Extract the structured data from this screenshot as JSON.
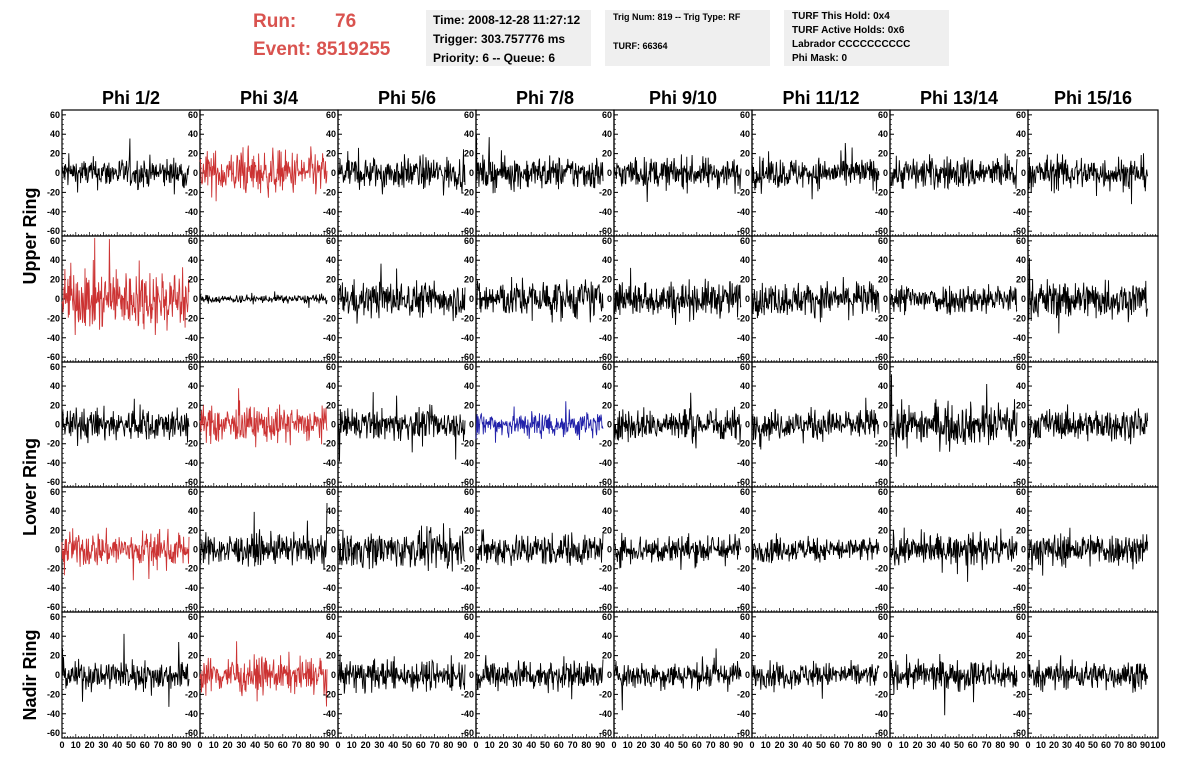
{
  "header": {
    "run_label": "Run:",
    "run_value": "76",
    "event_label": "Event:",
    "event_value": "8519255",
    "time": "Time: 2008-12-28 11:27:12",
    "trigger": "Trigger: 303.757776 ms",
    "priority": "Priority: 6 -- Queue: 6",
    "trig_num": "Trig Num: 819 -- Trig Type: RF",
    "turf": "TURF: 66364",
    "turf_hold": "TURF This Hold: 0x4",
    "turf_active": "TURF Active Holds: 0x6",
    "labrador": "Labrador CCCCCCCCCC",
    "phi_mask": "Phi Mask: 0"
  },
  "colors": {
    "normal": "#000000",
    "red": "#cc3333",
    "blue": "#2222aa",
    "run_text": "#d9534f",
    "info_bg": "#efefef"
  },
  "chart_data": {
    "type": "line",
    "columns": [
      "Phi 1/2",
      "Phi 3/4",
      "Phi 5/6",
      "Phi 7/8",
      "Phi 9/10",
      "Phi 11/12",
      "Phi 13/14",
      "Phi 15/16"
    ],
    "rows": [
      "Upper Ring",
      "Lower Ring",
      "Nadir Ring"
    ],
    "ylim": [
      -65,
      65
    ],
    "y_ticks": [
      -60,
      -40,
      -20,
      0,
      20,
      40,
      60
    ],
    "y_tick_labels": [
      "-60",
      "-40",
      "-20",
      "0",
      "20",
      "40",
      "60"
    ],
    "x_tick_labels": [
      "0",
      "10",
      "20",
      "30",
      "40",
      "50",
      "60",
      "70",
      "80",
      "90",
      "100"
    ],
    "xlim": [
      0,
      100
    ],
    "panels": [
      {
        "amp": [
          11,
          16,
          12,
          12,
          11,
          11,
          12,
          12
        ],
        "color": [
          "black",
          "red",
          "black",
          "black",
          "black",
          "black",
          "black",
          "black"
        ]
      },
      {
        "amp": [
          22,
          3,
          13,
          14,
          13,
          12,
          11,
          14
        ],
        "color": [
          "red",
          "black",
          "black",
          "black",
          "black",
          "black",
          "black",
          "black"
        ]
      },
      {
        "amp": [
          12,
          13,
          11,
          10,
          12,
          11,
          15,
          11
        ],
        "color": [
          "black",
          "red",
          "black",
          "blue",
          "black",
          "black",
          "black",
          "black"
        ]
      },
      {
        "amp": [
          13,
          11,
          13,
          12,
          11,
          9,
          11,
          12
        ],
        "color": [
          "red",
          "black",
          "black",
          "black",
          "black",
          "black",
          "black",
          "black"
        ]
      },
      {
        "amp": [
          11,
          13,
          11,
          11,
          10,
          9,
          11,
          10
        ],
        "color": [
          "black",
          "red",
          "black",
          "black",
          "black",
          "black",
          "black",
          "black"
        ]
      }
    ]
  }
}
